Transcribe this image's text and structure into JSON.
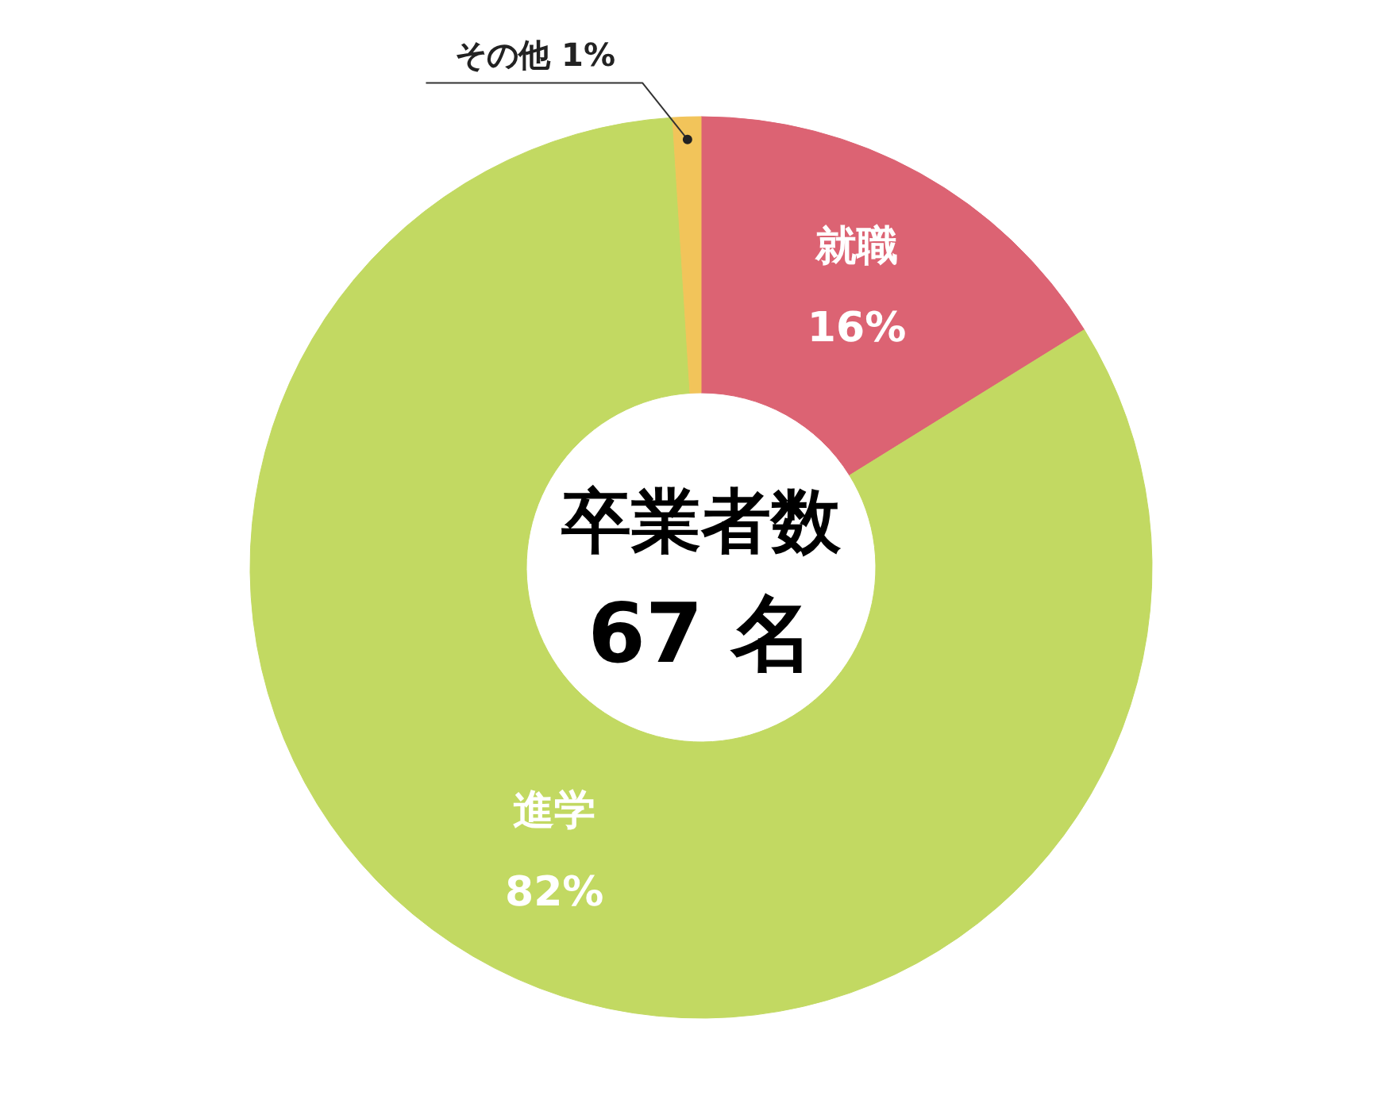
{
  "chart_data": {
    "type": "donut",
    "categories": [
      "就職",
      "進学",
      "その他"
    ],
    "values": [
      16,
      82,
      1
    ],
    "colors": [
      "#dc6373",
      "#c2d962",
      "#f2c45a"
    ],
    "value_labels": [
      "16%",
      "82%",
      "1%"
    ],
    "annotations": [
      "卒業者数",
      "67 名"
    ]
  }
}
